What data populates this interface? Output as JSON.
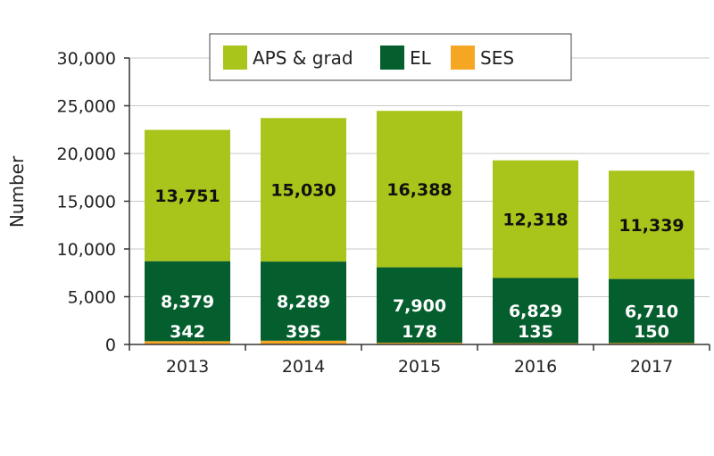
{
  "chart_data": {
    "type": "bar",
    "stacked": true,
    "categories": [
      "2013",
      "2014",
      "2015",
      "2016",
      "2017"
    ],
    "series": [
      {
        "name": "SES",
        "color": "#F5A623",
        "values": [
          342,
          395,
          178,
          135,
          150
        ]
      },
      {
        "name": "EL",
        "color": "#055E2E",
        "values": [
          8379,
          8289,
          7900,
          6829,
          6710
        ]
      },
      {
        "name": "APS & grad",
        "color": "#A9C41A",
        "values": [
          13751,
          15030,
          16388,
          12318,
          11339
        ]
      }
    ],
    "data_labels": {
      "SES": [
        "342",
        "395",
        "178",
        "135",
        "150"
      ],
      "EL": [
        "8,379",
        "8,289",
        "7,900",
        "6,829",
        "6,710"
      ],
      "APS & grad": [
        "13,751",
        "15,030",
        "16,388",
        "12,318",
        "11,339"
      ]
    },
    "ylabel": "Number",
    "xlabel": "",
    "ylim": [
      0,
      30000
    ],
    "yticks": [
      "0",
      "5,000",
      "10,000",
      "15,000",
      "20,000",
      "25,000",
      "30,000"
    ],
    "grid": true,
    "legend": {
      "placement": "top",
      "order": [
        "APS & grad",
        "EL",
        "SES"
      ]
    }
  }
}
